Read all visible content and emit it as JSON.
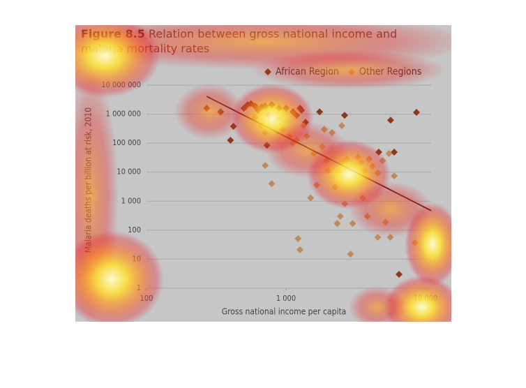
{
  "chart_data": {
    "type": "scatter",
    "title_label": "Figure 8.5",
    "title": "Relation between gross national income and malaria mortality rates",
    "x_label": "Gross national income per capita",
    "y_label": "Malaria deaths per billion at risk, 2010",
    "log_x": true,
    "log_y": true,
    "grid": true,
    "legend": "top-right",
    "xlim": [
      100,
      10000
    ],
    "xticks": [
      100,
      {
        "value": 1000,
        "label": "1 000"
      },
      {
        "value": 10000,
        "label": "10 000"
      }
    ],
    "ylim": [
      1,
      10000000
    ],
    "yticks": [
      1,
      10,
      100,
      {
        "value": 1000,
        "label": "1 000"
      },
      {
        "value": 10000,
        "label": "10 000"
      },
      {
        "value": 100000,
        "label": "100 000"
      },
      {
        "value": 1000000,
        "label": "1 000 000"
      },
      {
        "value": 10000000,
        "label": "10 000 000"
      }
    ],
    "series": [
      {
        "name": "African Region",
        "color": "#8a3a1c",
        "x": [
          270,
          340,
          400,
          420,
          500,
          530,
          560,
          600,
          630,
          670,
          710,
          730,
          750,
          790,
          890,
          1000,
          1120,
          1190,
          1260,
          1290,
          1380,
          1740,
          2630,
          4620,
          5620,
          5960,
          6460,
          8610
        ],
        "values": [
          1600000,
          1200000,
          126000,
          380000,
          1600000,
          2100000,
          2300000,
          1900000,
          1350000,
          1780000,
          1900000,
          85000,
          910000,
          2100000,
          1600000,
          1600000,
          1200000,
          910000,
          1600000,
          1350000,
          525000,
          1200000,
          910000,
          49000,
          620000,
          49000,
          3,
          1150000
        ]
      },
      {
        "name": "Other Regions",
        "color": "#c08a5c",
        "x": [
          600,
          670,
          710,
          710,
          790,
          830,
          890,
          940,
          1060,
          1120,
          1190,
          1220,
          1260,
          1330,
          1410,
          1500,
          1580,
          1660,
          1820,
          1880,
          1950,
          2000,
          2140,
          2250,
          2330,
          2370,
          2450,
          2510,
          2540,
          2640,
          2720,
          2900,
          3000,
          3270,
          3450,
          3550,
          3640,
          3830,
          3940,
          4150,
          4540,
          4540,
          4920,
          5170,
          5470,
          5590,
          5960,
          8410
        ],
        "values": [
          780000,
          400000,
          230000,
          17000,
          4000,
          690000,
          690000,
          300000,
          174000,
          100000,
          130000,
          51,
          21,
          400000,
          174000,
          1300,
          44000,
          3600,
          76000,
          300000,
          25000,
          11000,
          230000,
          3100,
          170,
          11000,
          300,
          400000,
          22000,
          810,
          28000,
          15,
          170,
          33000,
          22000,
          1300,
          11000,
          300,
          28000,
          16000,
          9300,
          57,
          25000,
          190,
          44000,
          57,
          7400,
          37
        ]
      }
    ],
    "trendline": {
      "x": [
        270,
        11000
      ],
      "values": [
        4100000,
        470
      ]
    }
  }
}
